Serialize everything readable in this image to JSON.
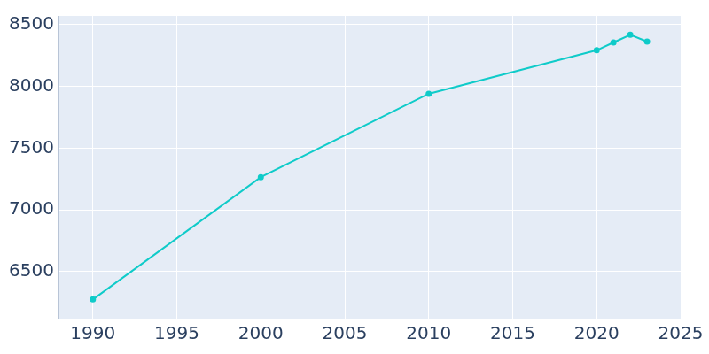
{
  "chart_data": {
    "type": "line",
    "x": [
      1990,
      2000,
      2010,
      2020,
      2021,
      2022,
      2023
    ],
    "values": [
      6275,
      7265,
      7940,
      8292,
      8355,
      8418,
      8362
    ],
    "color": "#0fcbc9",
    "marker": "circle",
    "line_style": "solid",
    "xlim": [
      1988,
      2025
    ],
    "xticks": [
      1990,
      1995,
      2000,
      2005,
      2010,
      2015,
      2020,
      2025
    ],
    "ylim": [
      6120,
      8570
    ],
    "yticks": [
      6500,
      7000,
      7500,
      8000,
      8500
    ],
    "grid": true
  }
}
